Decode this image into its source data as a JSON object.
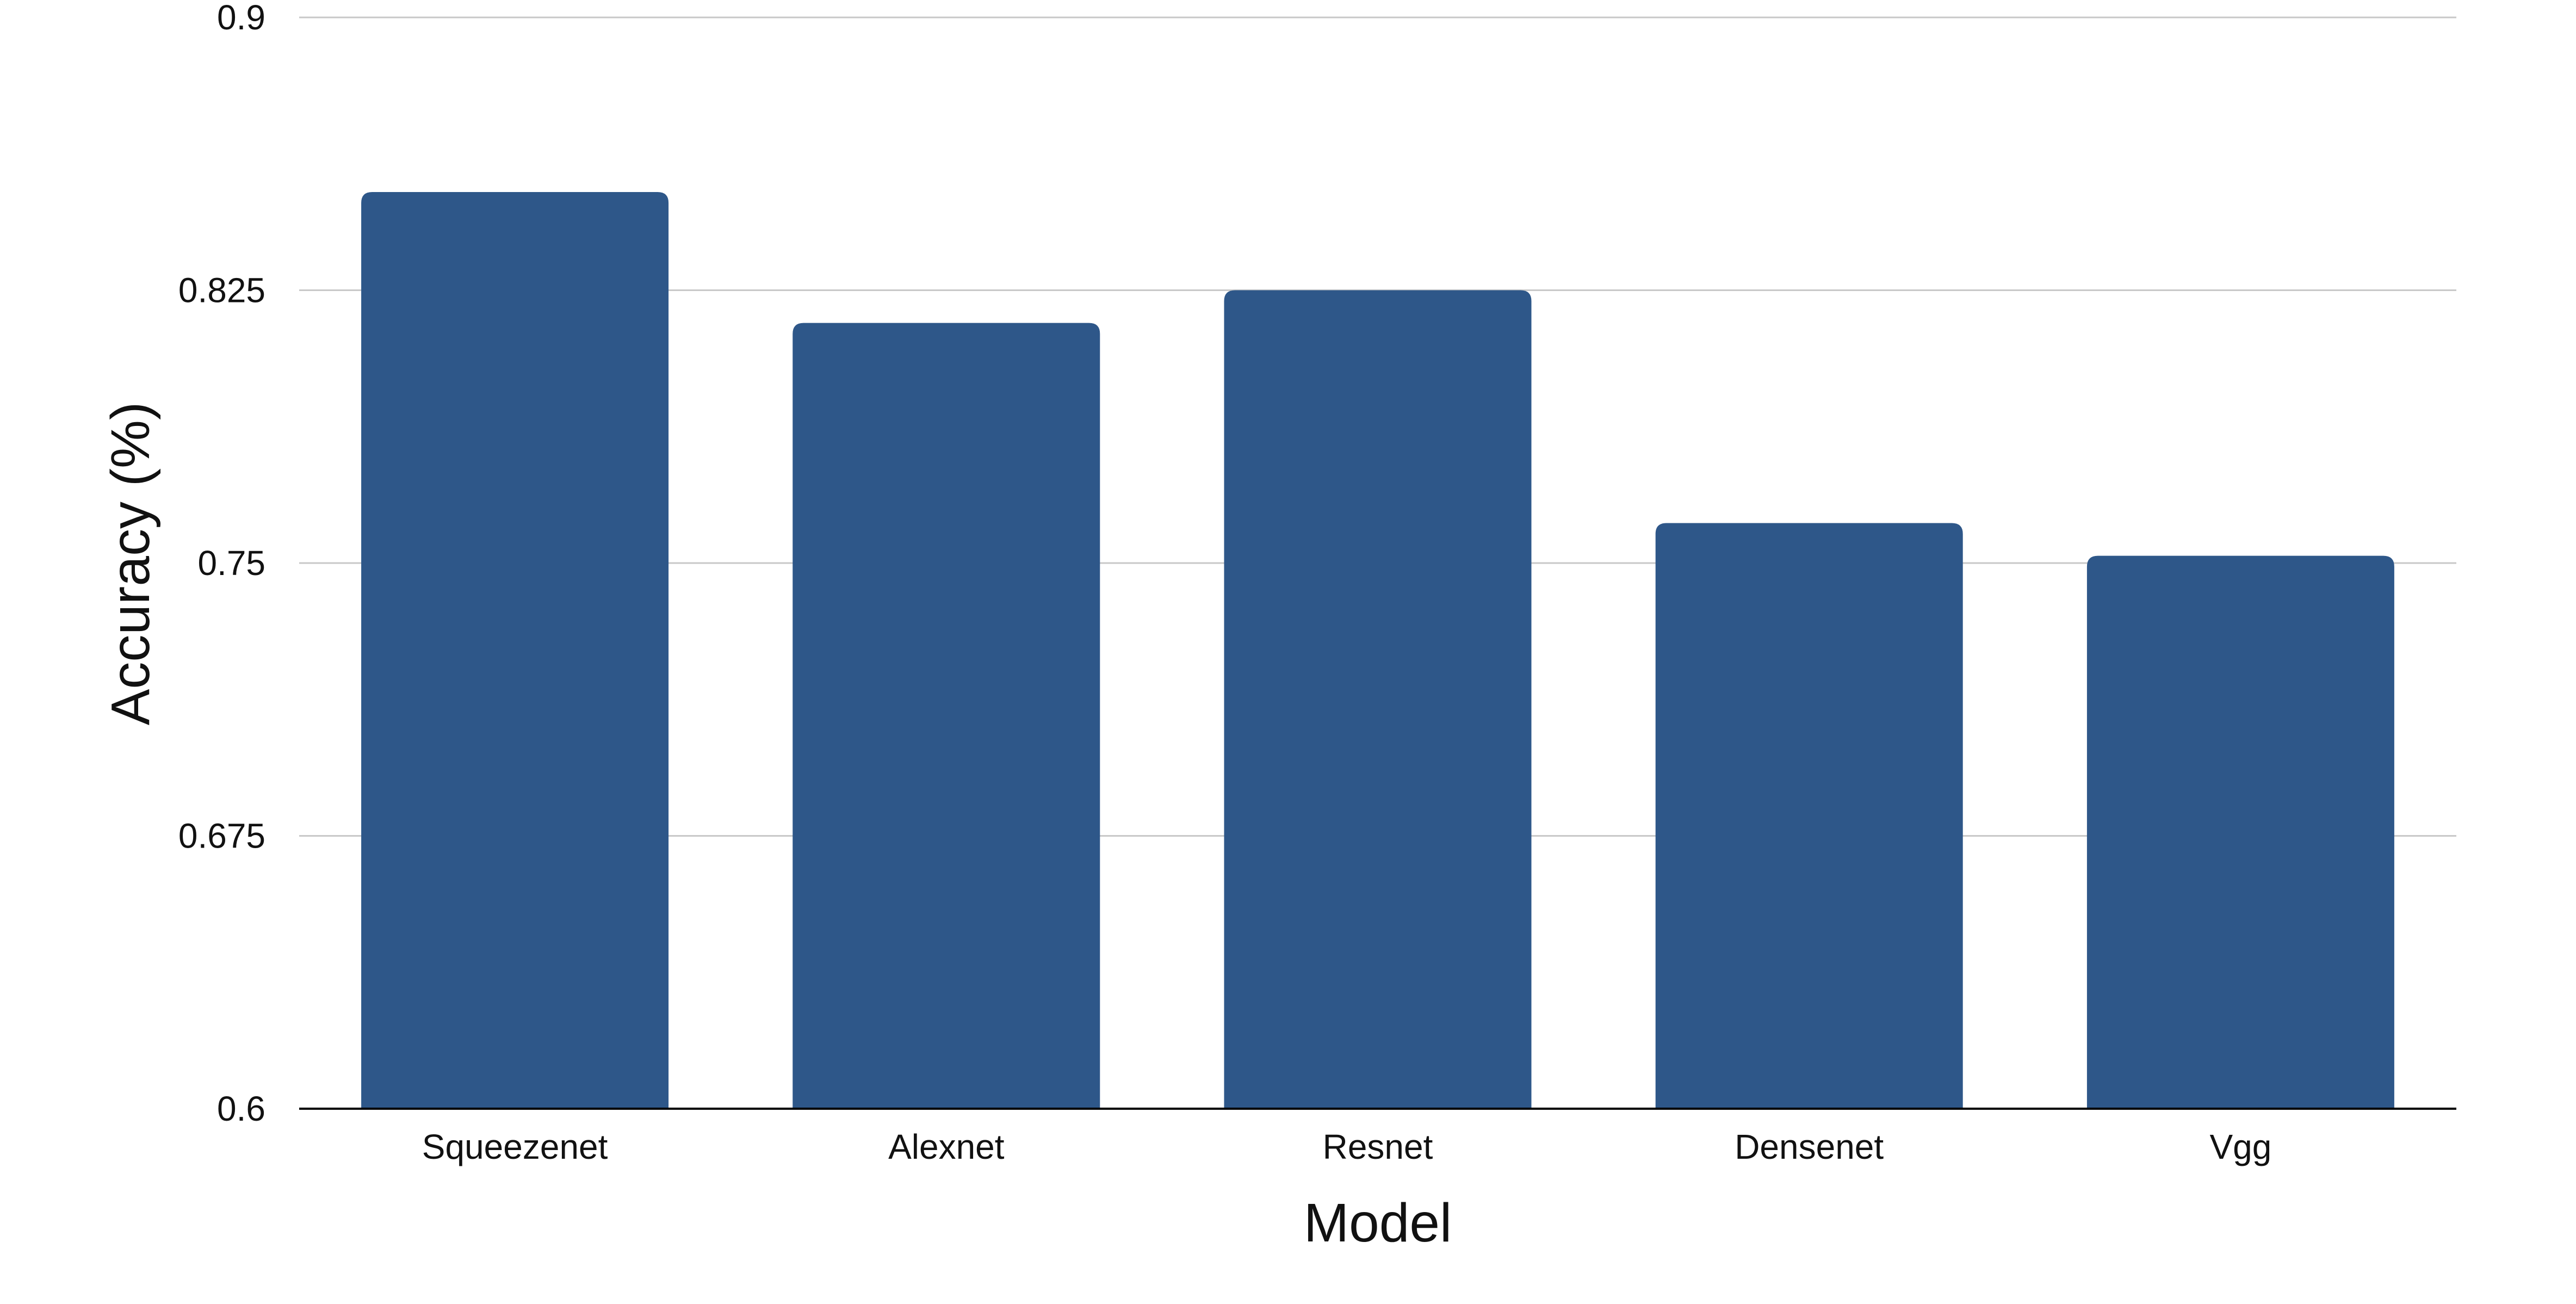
{
  "chart_data": {
    "type": "bar",
    "categories": [
      "Squeezenet",
      "Alexnet",
      "Resnet",
      "Densenet",
      "Vgg"
    ],
    "values": [
      0.852,
      0.816,
      0.825,
      0.761,
      0.752
    ],
    "xlabel": "Model",
    "ylabel": "Accuracy (%)",
    "ylim": [
      0.6,
      0.9
    ],
    "yticks": [
      0.6,
      0.675,
      0.75,
      0.825,
      0.9
    ],
    "ytick_labels": [
      "0.6",
      "0.675",
      "0.75",
      "0.825",
      "0.9"
    ],
    "grid": true,
    "legend": "none",
    "bar_color": "#2E5789"
  }
}
